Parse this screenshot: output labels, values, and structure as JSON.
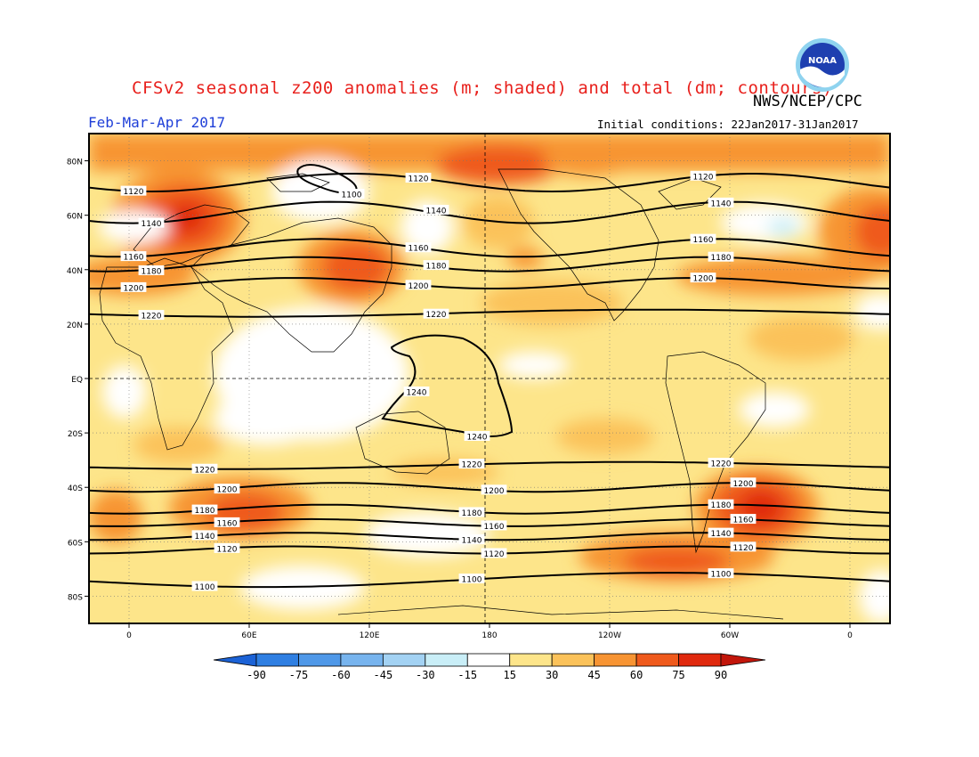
{
  "header": {
    "title": "CFSv2 seasonal z200 anomalies (m; shaded) and total (dm; contours)",
    "agency": "NWS/NCEP/CPC",
    "period": "Feb-Mar-Apr 2017",
    "initial_conditions": "Initial conditions: 22Jan2017-31Jan2017",
    "logo_text": "NOAA"
  },
  "axes": {
    "lat_labels": [
      "80N",
      "60N",
      "40N",
      "20N",
      "EQ",
      "20S",
      "40S",
      "60S",
      "80S"
    ],
    "lat_values": [
      80,
      60,
      40,
      20,
      0,
      -20,
      -40,
      -60,
      -80
    ],
    "lon_labels": [
      "0",
      "60E",
      "120E",
      "180",
      "120W",
      "60W",
      "0"
    ],
    "lon_values": [
      0,
      60,
      120,
      180,
      240,
      300,
      360
    ],
    "lon_range": [
      -20,
      380
    ],
    "lat_range": [
      -90,
      90
    ]
  },
  "colorbar": {
    "labels": [
      "-90",
      "-75",
      "-60",
      "-45",
      "-30",
      "-15",
      "15",
      "30",
      "45",
      "60",
      "75",
      "90"
    ],
    "colors": [
      "#1b62d6",
      "#2f7fe2",
      "#4f98e8",
      "#77b4ee",
      "#a3d2f3",
      "#c9eef7",
      "#ffffff",
      "#fde58a",
      "#fbc25a",
      "#f79433",
      "#ef5a1c",
      "#e0290e",
      "#c2160b"
    ]
  },
  "contour_levels": {
    "nh": [
      {
        "label": "1120",
        "lat": 72
      },
      {
        "label": "1140",
        "lat": 61
      },
      {
        "label": "1160",
        "lat": 48
      },
      {
        "label": "1180",
        "lat": 42
      },
      {
        "label": "1200",
        "lat": 35
      },
      {
        "label": "1220",
        "lat": 24
      }
    ],
    "sh": [
      {
        "label": "1220",
        "lat": -32
      },
      {
        "label": "1200",
        "lat": -40
      },
      {
        "label": "1180",
        "lat": -48
      },
      {
        "label": "1160",
        "lat": -53
      },
      {
        "label": "1140",
        "lat": -58
      },
      {
        "label": "1120",
        "lat": -63
      },
      {
        "label": "1100",
        "lat": -74
      }
    ],
    "closed": [
      {
        "label": "1100"
      },
      {
        "label": "1240"
      },
      {
        "label": "1240"
      }
    ]
  }
}
